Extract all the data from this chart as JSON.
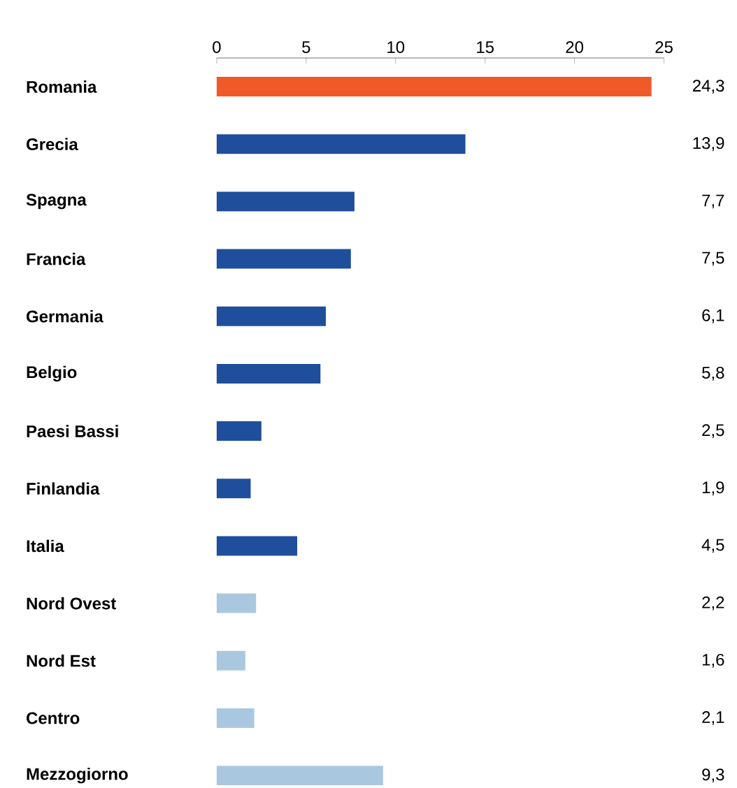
{
  "chart_data": {
    "type": "bar",
    "orientation": "horizontal",
    "categories": [
      "Romania",
      "Grecia",
      "Spagna",
      "Francia",
      "Germania",
      "Belgio",
      "Paesi Bassi",
      "Finlandia",
      "Italia",
      "Nord Ovest",
      "Nord Est",
      "Centro",
      "Mezzogiorno"
    ],
    "values": [
      24.3,
      13.9,
      7.7,
      7.5,
      6.1,
      5.8,
      2.5,
      1.9,
      4.5,
      2.2,
      1.6,
      2.1,
      9.3
    ],
    "value_labels": [
      "24,3",
      "13,9",
      "7,7",
      "7,5",
      "6,1",
      "5,8",
      "2,5",
      "1,9",
      "4,5",
      "2,2",
      "1,6",
      "2,1",
      "9,3"
    ],
    "colors": [
      "#f05a28",
      "#1f4e9c",
      "#1f4e9c",
      "#1f4e9c",
      "#1f4e9c",
      "#1f4e9c",
      "#1f4e9c",
      "#1f4e9c",
      "#1f4e9c",
      "#a9c8e0",
      "#a9c8e0",
      "#a9c8e0",
      "#a9c8e0"
    ],
    "xlim": [
      0,
      25
    ],
    "xticks": [
      0,
      5,
      10,
      15,
      20,
      25
    ]
  }
}
